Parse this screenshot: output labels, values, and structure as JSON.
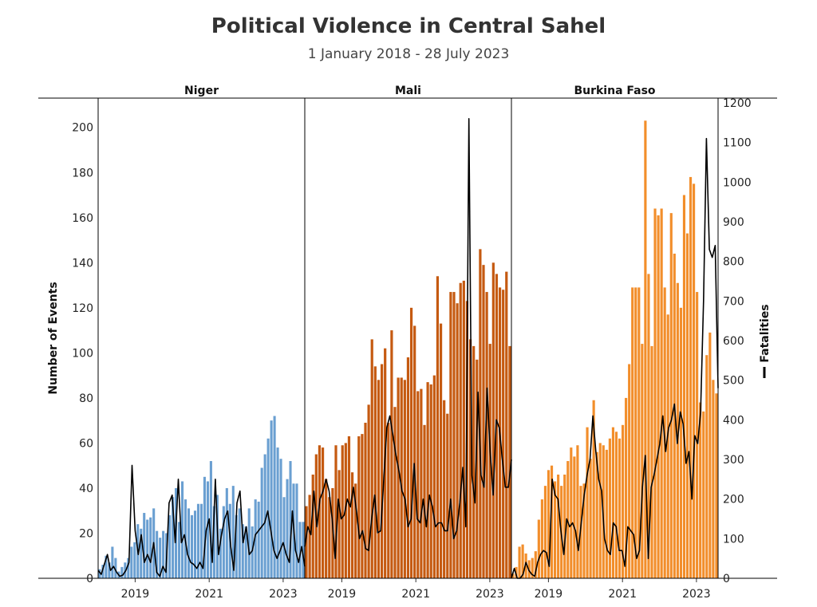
{
  "chart_data": {
    "type": "bar",
    "title": "Political Violence in Central Sahel",
    "subtitle": "1 January 2018 - 28 July 2023",
    "ylabel": "Number of Events",
    "y2label": "Fatalities",
    "ylim": [
      0,
      213
    ],
    "y2lim": [
      0,
      1212
    ],
    "yticks": [
      0,
      20,
      40,
      60,
      80,
      100,
      120,
      140,
      160,
      180,
      200
    ],
    "y2ticks": [
      0,
      100,
      200,
      300,
      400,
      500,
      600,
      700,
      800,
      900,
      1000,
      1100,
      1200
    ],
    "xticks": [
      "2019",
      "2021",
      "2023"
    ],
    "x_start": "2018-01",
    "legend": [
      {
        "label": "Fatalities",
        "color": "#000000",
        "placement": "right"
      }
    ],
    "facets": [
      {
        "name": "Niger",
        "color": "#6a9fd1",
        "events": [
          4,
          6,
          10,
          7,
          14,
          9,
          3,
          5,
          7,
          9,
          14,
          16,
          24,
          22,
          29,
          26,
          27,
          31,
          21,
          18,
          21,
          20,
          28,
          36,
          40,
          25,
          43,
          35,
          31,
          28,
          30,
          33,
          33,
          45,
          43,
          52,
          32,
          37,
          22,
          32,
          40,
          33,
          41,
          28,
          31,
          24,
          23,
          31,
          23,
          35,
          34,
          49,
          55,
          62,
          70,
          72,
          58,
          53,
          36,
          44,
          52,
          42,
          42,
          25,
          25
        ],
        "fatalities": [
          20,
          10,
          35,
          60,
          20,
          30,
          15,
          5,
          8,
          20,
          40,
          285,
          120,
          60,
          110,
          40,
          60,
          40,
          90,
          15,
          5,
          30,
          15,
          190,
          210,
          90,
          250,
          90,
          110,
          60,
          40,
          35,
          25,
          40,
          25,
          120,
          150,
          40,
          250,
          60,
          110,
          150,
          170,
          80,
          20,
          190,
          220,
          90,
          130,
          60,
          70,
          110,
          120,
          130,
          140,
          170,
          120,
          70,
          50,
          70,
          90,
          60,
          40,
          170,
          70,
          40,
          80,
          30
        ]
      },
      {
        "name": "Mali",
        "color": "#c55a11",
        "events": [
          32,
          37,
          46,
          55,
          59,
          58,
          44,
          36,
          40,
          59,
          48,
          59,
          60,
          63,
          47,
          42,
          63,
          64,
          69,
          77,
          106,
          94,
          88,
          95,
          102,
          69,
          110,
          76,
          89,
          89,
          88,
          98,
          120,
          112,
          83,
          84,
          68,
          87,
          86,
          90,
          134,
          113,
          79,
          73,
          127,
          127,
          122,
          131,
          132,
          123,
          106,
          103,
          97,
          146,
          139,
          127,
          104,
          140,
          135,
          129,
          128,
          136,
          103
        ],
        "fatalities": [
          80,
          130,
          110,
          220,
          130,
          200,
          220,
          250,
          220,
          150,
          50,
          200,
          150,
          160,
          200,
          180,
          230,
          170,
          100,
          120,
          75,
          70,
          150,
          210,
          115,
          120,
          250,
          380,
          410,
          360,
          310,
          270,
          220,
          200,
          130,
          150,
          290,
          150,
          140,
          200,
          130,
          210,
          180,
          130,
          140,
          140,
          120,
          120,
          200,
          100,
          120,
          190,
          280,
          130,
          1160,
          260,
          190,
          470,
          260,
          230,
          480,
          320,
          210,
          400,
          380,
          300,
          230,
          230,
          300
        ]
      },
      {
        "name": "Burkina Faso",
        "color": "#f28e2b",
        "events": [
          2,
          5,
          14,
          15,
          11,
          8,
          9,
          12,
          26,
          35,
          41,
          48,
          50,
          43,
          46,
          41,
          46,
          52,
          58,
          54,
          59,
          41,
          42,
          67,
          53,
          79,
          56,
          60,
          59,
          57,
          62,
          67,
          65,
          62,
          68,
          80,
          95,
          129,
          129,
          129,
          104,
          203,
          135,
          103,
          164,
          161,
          164,
          129,
          117,
          162,
          144,
          131,
          120,
          170,
          153,
          178,
          175,
          127,
          78,
          74,
          99,
          109,
          88,
          82
        ],
        "fatalities": [
          0,
          25,
          0,
          0,
          10,
          40,
          20,
          10,
          5,
          40,
          60,
          70,
          65,
          30,
          250,
          210,
          200,
          120,
          60,
          150,
          130,
          140,
          120,
          70,
          140,
          210,
          260,
          300,
          410,
          320,
          250,
          220,
          100,
          70,
          60,
          140,
          130,
          70,
          70,
          30,
          130,
          120,
          110,
          50,
          70,
          230,
          310,
          50,
          230,
          260,
          300,
          340,
          410,
          320,
          380,
          400,
          440,
          340,
          420,
          390,
          290,
          320,
          200,
          360,
          340,
          420,
          700,
          1110,
          830,
          810,
          840,
          480
        ]
      }
    ]
  }
}
